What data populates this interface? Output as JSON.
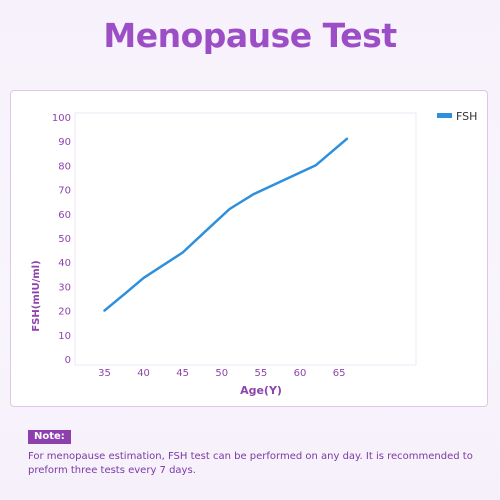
{
  "title": "Menopause Test",
  "colors": {
    "title": "#9b4ec5",
    "accent": "#8e44ad",
    "line": "#2e8fdc",
    "axis_text": "#8e44ad",
    "grid": "#f1e4f6",
    "note_badge": "#8e3fae"
  },
  "chart_data": {
    "type": "line",
    "xlabel": "Age(Y)",
    "ylabel": "FSH(mIU/ml)",
    "x_ticks": [
      35,
      40,
      45,
      50,
      55,
      60,
      65
    ],
    "y_ticks": [
      0,
      10,
      20,
      30,
      40,
      50,
      60,
      70,
      80,
      90,
      100
    ],
    "xlim": [
      32,
      71
    ],
    "ylim": [
      0,
      100
    ],
    "legend_position": "top-right",
    "grid": false,
    "series": [
      {
        "name": "FSH",
        "x": [
          35,
          38,
          40,
          45,
          48,
          51,
          54,
          58,
          62,
          66
        ],
        "y": [
          20,
          28,
          33.5,
          44,
          53,
          62,
          68,
          74,
          80,
          91
        ]
      }
    ]
  },
  "note": {
    "label": "Note:",
    "text": "For menopause estimation, FSH test can be performed on any day. It is recommended to preform three tests every 7 days."
  }
}
